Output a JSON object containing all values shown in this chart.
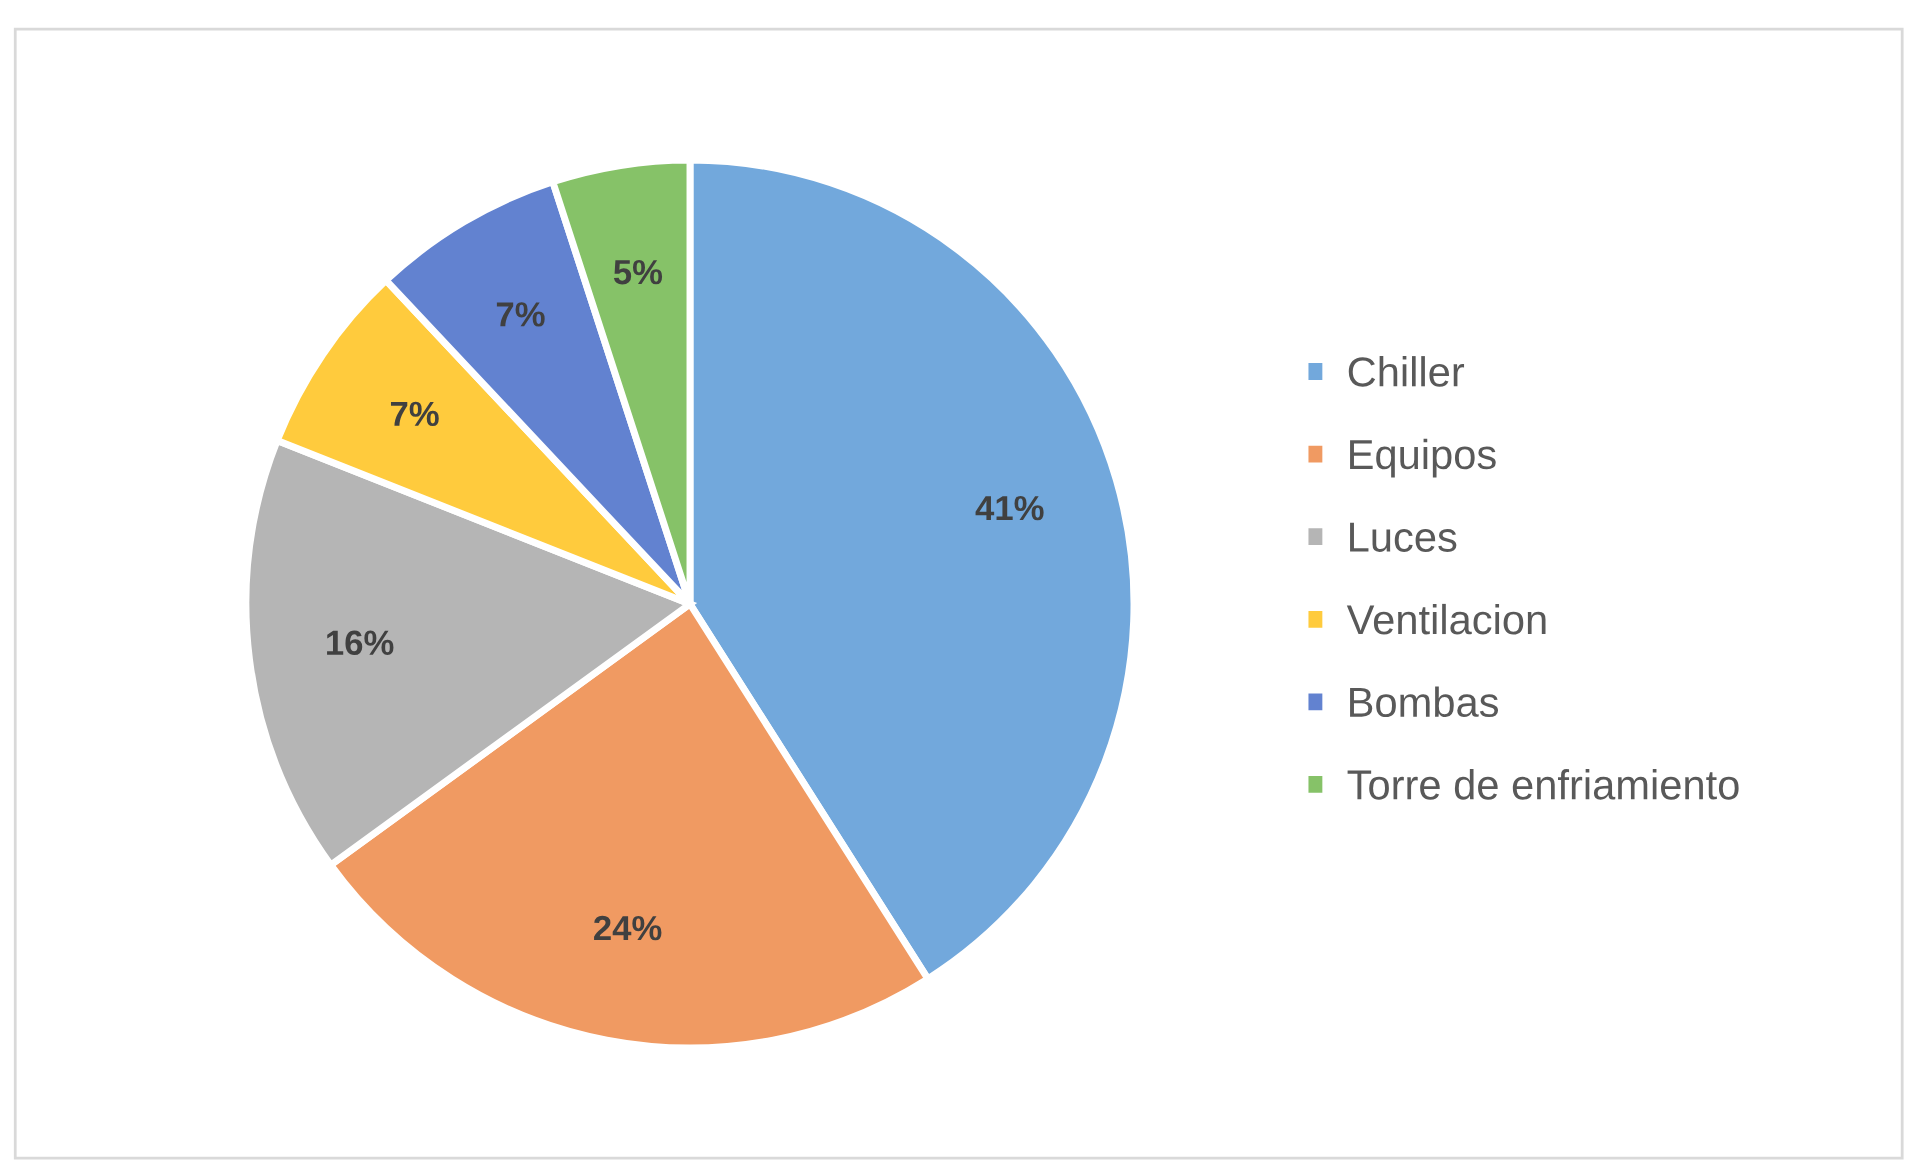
{
  "chart_data": {
    "type": "pie",
    "categories": [
      "Chiller",
      "Equipos",
      "Luces",
      "Ventilacion",
      "Bombas",
      "Torre de enfriamiento"
    ],
    "values": [
      41,
      24,
      16,
      7,
      7,
      5
    ],
    "colors": [
      "#72a8dc",
      "#f09a62",
      "#b5b5b5",
      "#ffcb3d",
      "#6282d0",
      "#86c268"
    ],
    "value_labels": [
      "41%",
      "24%",
      "16%",
      "7%",
      "7%",
      "5%"
    ],
    "legend": "right"
  }
}
